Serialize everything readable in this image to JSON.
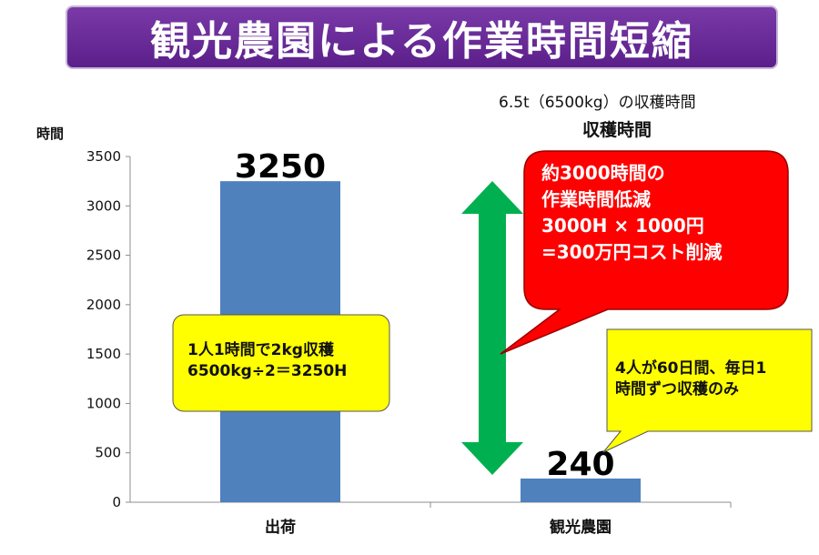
{
  "title": "観光農園による作業時間短縮",
  "subtitle_line1": "6.5t（6500kg）の収穫時間",
  "subtitle_line2": "収穫時間",
  "chart_data": {
    "type": "bar",
    "ylabel": "時間",
    "categories": [
      "出荷",
      "観光農園"
    ],
    "values": [
      3250,
      240
    ],
    "data_labels": [
      "3250",
      "240"
    ],
    "ylim": [
      0,
      3500
    ],
    "yticks": [
      0,
      500,
      1000,
      1500,
      2000,
      2500,
      3000,
      3500
    ],
    "bar_color": "#4f81bd",
    "grid": false
  },
  "callouts": {
    "left_box": {
      "lines": [
        "1人1時間で2kg収穫",
        "6500kg÷2＝3250H"
      ],
      "fill": "#ffff00"
    },
    "right_box": {
      "lines": [
        "4人が60日間、毎日1",
        "時間ずつ収穫のみ"
      ],
      "fill": "#ffff00"
    },
    "red_bubble": {
      "lines": [
        "約3000時間の",
        "作業時間低減",
        "3000H × 1000円",
        "=300万円コスト削減"
      ],
      "fill": "#ff0000"
    }
  },
  "arrow_color": "#00b050"
}
